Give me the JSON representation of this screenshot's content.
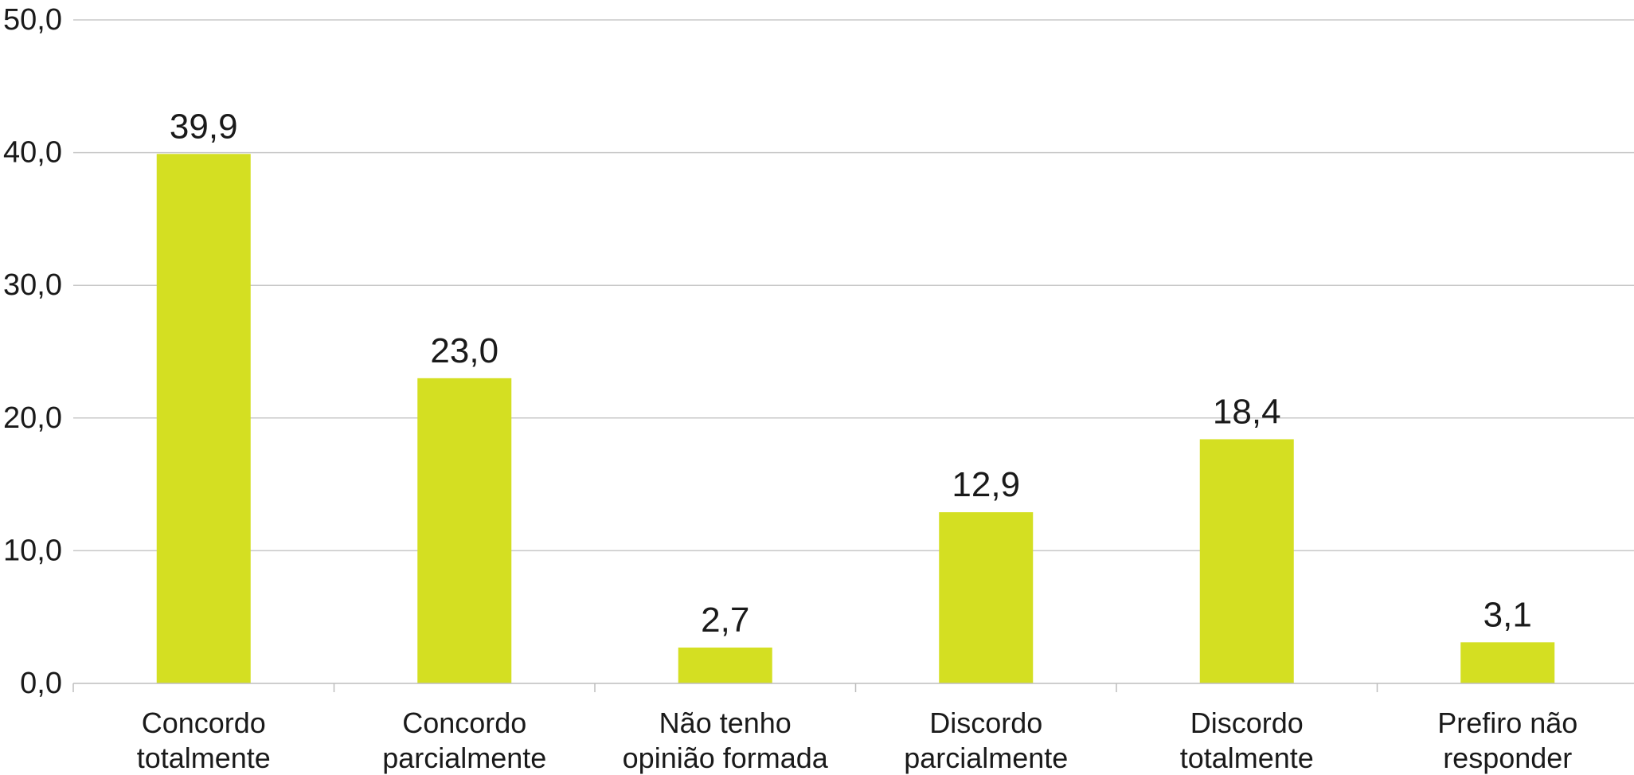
{
  "chart_data": {
    "type": "bar",
    "categories": [
      [
        "Concordo",
        "totalmente"
      ],
      [
        "Concordo",
        "parcialmente"
      ],
      [
        "Não tenho",
        "opinião formada"
      ],
      [
        "Discordo",
        "parcialmente"
      ],
      [
        "Discordo",
        "totalmente"
      ],
      [
        "Prefiro não",
        "responder"
      ]
    ],
    "values": [
      39.9,
      23.0,
      2.7,
      12.9,
      18.4,
      3.1
    ],
    "data_labels": [
      "39,9",
      "23,0",
      "2,7",
      "12,9",
      "18,4",
      "3,1"
    ],
    "ylim": [
      0,
      50
    ],
    "yticks": [
      0,
      10,
      20,
      30,
      40,
      50
    ],
    "ytick_labels": [
      "0,0",
      "10,0",
      "20,0",
      "30,0",
      "40,0",
      "50,0"
    ],
    "grid": true,
    "legend": "none",
    "bar_color": "#d4df22"
  }
}
